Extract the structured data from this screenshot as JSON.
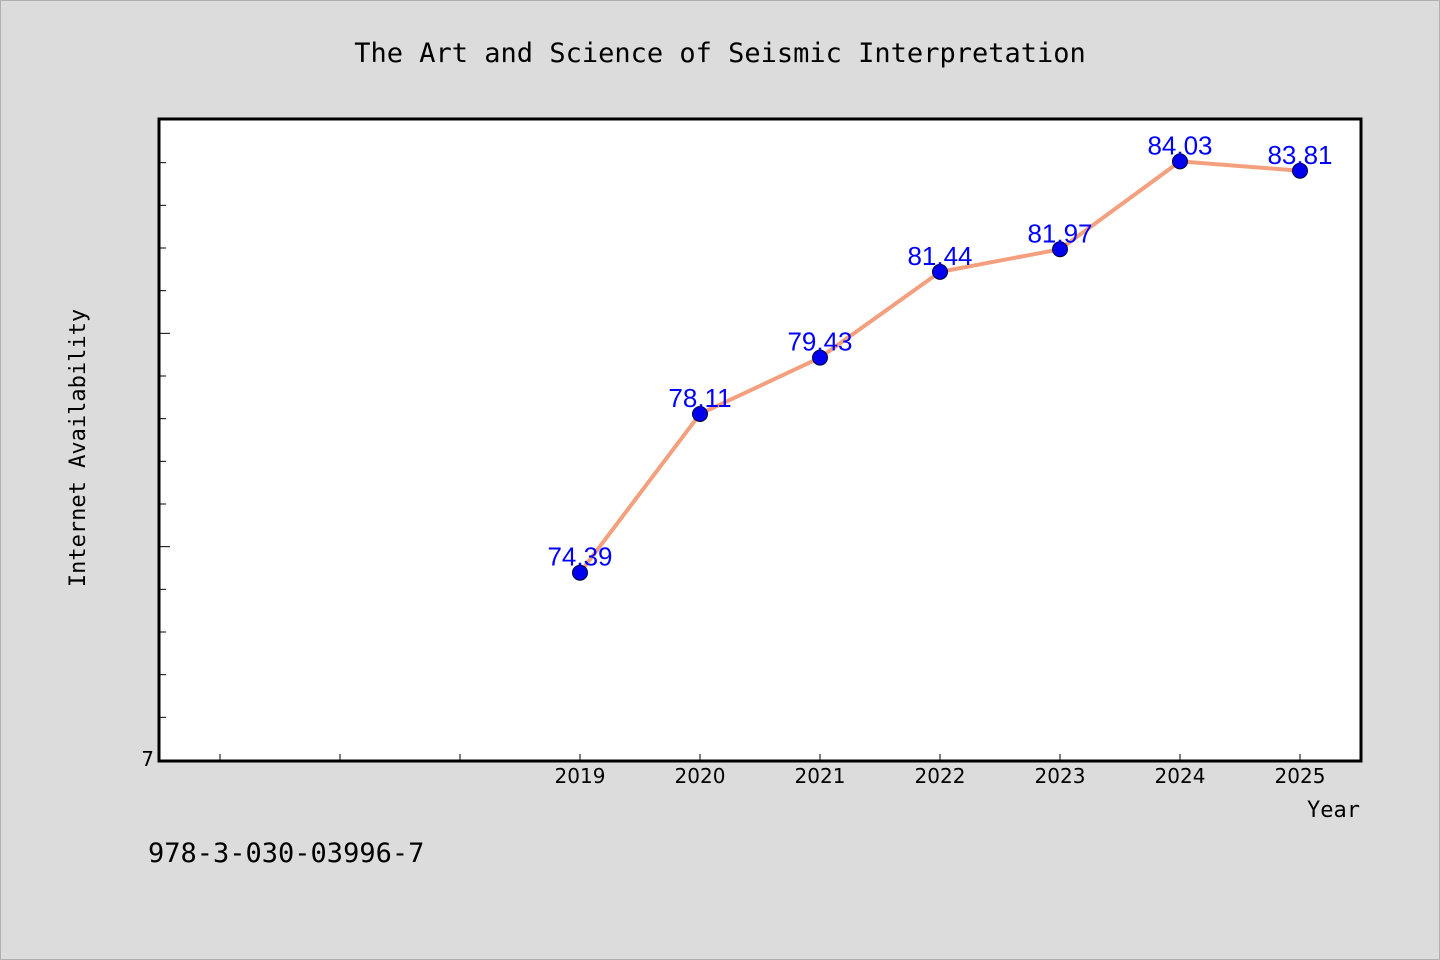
{
  "chart_data": {
    "type": "line",
    "title": "The Art and Science of Seismic Interpretation",
    "xlabel": "Year",
    "ylabel": "Internet Availability",
    "categories": [
      "2019",
      "2020",
      "2021",
      "2022",
      "2023",
      "2024",
      "2025"
    ],
    "series": [
      {
        "values": [
          74.39,
          78.11,
          79.43,
          81.44,
          81.97,
          84.03,
          83.81
        ],
        "data_labels": [
          "74.39",
          "78.11",
          "79.43",
          "81.44",
          "81.97",
          "84.03",
          "83.81"
        ]
      }
    ],
    "y_tick_labels": [
      "7"
    ],
    "ylim": [
      70.0,
      85.0
    ],
    "xlim": [
      2015.5,
      2025.5
    ],
    "grid": false,
    "legend": "none",
    "colors": {
      "line": "#f4a07f",
      "marker": "#0000ee",
      "data_label": "#0000ff",
      "plot_background": "#ffffff",
      "figure_background": "#dcdcdc"
    }
  },
  "footer": {
    "isbn": "978-3-030-03996-7"
  }
}
